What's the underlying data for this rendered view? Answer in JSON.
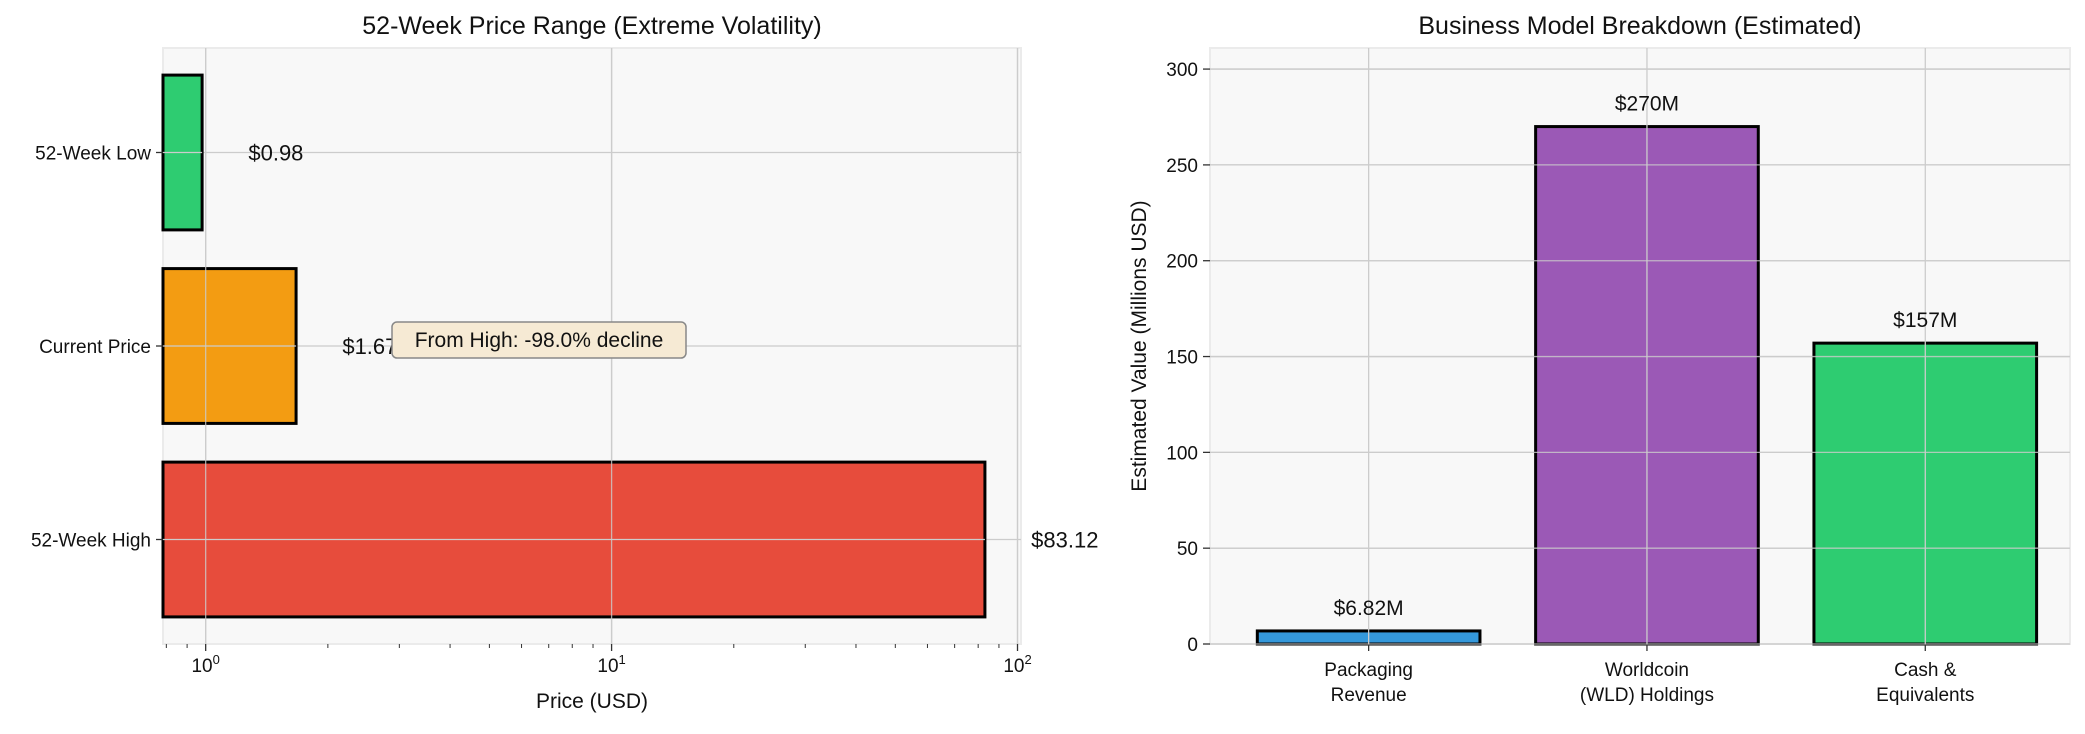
{
  "chart_data": [
    {
      "type": "bar",
      "orientation": "horizontal",
      "title": "52-Week Price Range (Extreme Volatility)",
      "xlabel": "Price (USD)",
      "ylabel": "",
      "xscale": "log",
      "xlim": [
        0.785,
        102
      ],
      "x_tick_labels": [
        "10^0",
        "10^1",
        "10^2"
      ],
      "categories": [
        "52-Week High",
        "Current Price",
        "52-Week Low"
      ],
      "values": [
        83.12,
        1.67,
        0.98
      ],
      "data_labels": [
        "$83.12",
        "$1.67",
        "$0.98"
      ],
      "colors": [
        "#e74c3c",
        "#f39c12",
        "#2ecc71"
      ],
      "annotation": "From High: -98.0% decline",
      "grid": true
    },
    {
      "type": "bar",
      "title": "Business Model Breakdown (Estimated)",
      "xlabel": "",
      "ylabel": "Estimated Value (Millions USD)",
      "ylim": [
        0,
        311
      ],
      "y_ticks": [
        0,
        50,
        100,
        150,
        200,
        250,
        300
      ],
      "categories": [
        "Packaging\nRevenue",
        "Worldcoin\n(WLD) Holdings",
        "Cash &\nEquivalents"
      ],
      "values": [
        6.82,
        270,
        157
      ],
      "data_labels": [
        "$6.82M",
        "$270M",
        "$157M"
      ],
      "colors": [
        "#3498db",
        "#9b59b6",
        "#2ecc71"
      ],
      "grid": true
    }
  ]
}
